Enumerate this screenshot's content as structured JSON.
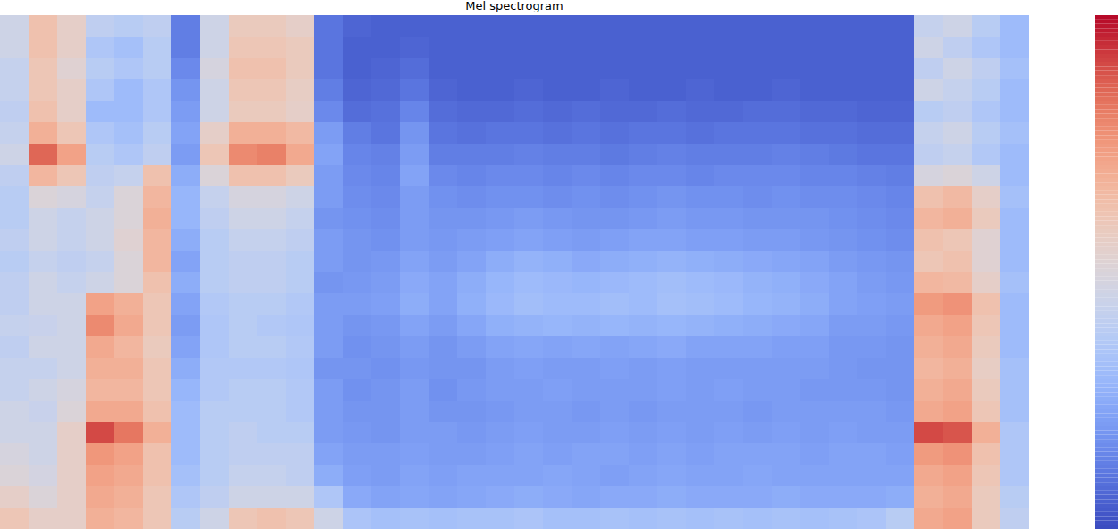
{
  "chart_data": {
    "type": "heatmap",
    "title": "Mel spectrogram",
    "color": "coolwarm",
    "tick_labels": false,
    "color_range": [
      0,
      1
    ],
    "cells": [
      [
        0.45,
        0.45,
        0.42,
        0.42,
        0.4,
        0.42,
        0.45,
        0.4,
        0.38,
        0.38,
        0.4,
        0.38,
        0.4,
        0.4,
        0.42,
        0.4,
        0.42,
        0.42,
        0.45,
        0.45,
        0.48,
        0.5,
        0.55,
        0.6
      ],
      [
        0.62,
        0.62,
        0.6,
        0.6,
        0.62,
        0.68,
        0.85,
        0.66,
        0.5,
        0.45,
        0.45,
        0.42,
        0.45,
        0.45,
        0.43,
        0.45,
        0.42,
        0.45,
        0.43,
        0.45,
        0.45,
        0.47,
        0.5,
        0.55
      ],
      [
        0.55,
        0.55,
        0.52,
        0.55,
        0.55,
        0.6,
        0.72,
        0.6,
        0.48,
        0.42,
        0.42,
        0.4,
        0.42,
        0.45,
        0.45,
        0.45,
        0.45,
        0.48,
        0.5,
        0.55,
        0.55,
        0.55,
        0.55,
        0.55
      ],
      [
        0.4,
        0.35,
        0.38,
        0.35,
        0.3,
        0.35,
        0.38,
        0.4,
        0.42,
        0.45,
        0.45,
        0.42,
        0.45,
        0.72,
        0.78,
        0.7,
        0.68,
        0.66,
        0.7,
        0.9,
        0.75,
        0.72,
        0.7,
        0.68
      ],
      [
        0.38,
        0.32,
        0.35,
        0.3,
        0.3,
        0.32,
        0.35,
        0.42,
        0.5,
        0.5,
        0.52,
        0.5,
        0.5,
        0.68,
        0.7,
        0.66,
        0.68,
        0.66,
        0.7,
        0.82,
        0.72,
        0.7,
        0.68,
        0.66
      ],
      [
        0.4,
        0.38,
        0.38,
        0.35,
        0.35,
        0.38,
        0.4,
        0.62,
        0.66,
        0.68,
        0.66,
        0.66,
        0.62,
        0.6,
        0.6,
        0.58,
        0.6,
        0.6,
        0.62,
        0.68,
        0.62,
        0.62,
        0.6,
        0.6
      ],
      [
        0.12,
        0.12,
        0.15,
        0.18,
        0.2,
        0.22,
        0.2,
        0.25,
        0.28,
        0.28,
        0.25,
        0.22,
        0.25,
        0.22,
        0.2,
        0.22,
        0.25,
        0.28,
        0.3,
        0.3,
        0.3,
        0.32,
        0.35,
        0.38
      ],
      [
        0.45,
        0.45,
        0.48,
        0.45,
        0.45,
        0.55,
        0.6,
        0.5,
        0.42,
        0.4,
        0.38,
        0.38,
        0.38,
        0.36,
        0.35,
        0.35,
        0.36,
        0.36,
        0.38,
        0.38,
        0.38,
        0.38,
        0.4,
        0.45
      ],
      [
        0.58,
        0.6,
        0.62,
        0.6,
        0.58,
        0.68,
        0.78,
        0.62,
        0.48,
        0.45,
        0.42,
        0.4,
        0.4,
        0.38,
        0.38,
        0.38,
        0.36,
        0.38,
        0.38,
        0.4,
        0.4,
        0.42,
        0.45,
        0.6
      ],
      [
        0.58,
        0.6,
        0.62,
        0.6,
        0.58,
        0.68,
        0.8,
        0.62,
        0.48,
        0.45,
        0.42,
        0.4,
        0.4,
        0.38,
        0.36,
        0.38,
        0.36,
        0.38,
        0.38,
        0.38,
        0.4,
        0.42,
        0.45,
        0.62
      ],
      [
        0.55,
        0.58,
        0.58,
        0.56,
        0.55,
        0.65,
        0.7,
        0.58,
        0.45,
        0.42,
        0.4,
        0.38,
        0.38,
        0.36,
        0.35,
        0.36,
        0.35,
        0.36,
        0.36,
        0.38,
        0.4,
        0.4,
        0.45,
        0.6
      ],
      [
        0.1,
        0.1,
        0.1,
        0.12,
        0.15,
        0.2,
        0.22,
        0.2,
        0.2,
        0.18,
        0.2,
        0.2,
        0.18,
        0.2,
        0.2,
        0.2,
        0.18,
        0.2,
        0.2,
        0.2,
        0.22,
        0.25,
        0.35,
        0.45
      ],
      [
        0.06,
        0.05,
        0.05,
        0.06,
        0.08,
        0.12,
        0.14,
        0.15,
        0.16,
        0.17,
        0.18,
        0.18,
        0.19,
        0.2,
        0.18,
        0.17,
        0.18,
        0.17,
        0.18,
        0.19,
        0.2,
        0.21,
        0.24,
        0.34
      ],
      [
        0.05,
        0.05,
        0.06,
        0.07,
        0.09,
        0.1,
        0.13,
        0.14,
        0.15,
        0.16,
        0.17,
        0.19,
        0.2,
        0.21,
        0.19,
        0.18,
        0.17,
        0.18,
        0.18,
        0.18,
        0.2,
        0.2,
        0.22,
        0.32
      ],
      [
        0.05,
        0.06,
        0.08,
        0.1,
        0.14,
        0.18,
        0.2,
        0.22,
        0.2,
        0.2,
        0.2,
        0.22,
        0.24,
        0.25,
        0.22,
        0.2,
        0.19,
        0.2,
        0.2,
        0.2,
        0.21,
        0.22,
        0.23,
        0.33
      ],
      [
        0.05,
        0.05,
        0.05,
        0.06,
        0.08,
        0.1,
        0.12,
        0.15,
        0.17,
        0.18,
        0.19,
        0.2,
        0.22,
        0.22,
        0.2,
        0.18,
        0.18,
        0.17,
        0.18,
        0.2,
        0.2,
        0.21,
        0.22,
        0.32
      ],
      [
        0.05,
        0.05,
        0.05,
        0.05,
        0.07,
        0.09,
        0.12,
        0.14,
        0.16,
        0.18,
        0.2,
        0.22,
        0.25,
        0.26,
        0.23,
        0.2,
        0.18,
        0.19,
        0.18,
        0.19,
        0.2,
        0.22,
        0.23,
        0.33
      ],
      [
        0.05,
        0.05,
        0.05,
        0.05,
        0.07,
        0.1,
        0.12,
        0.15,
        0.17,
        0.19,
        0.21,
        0.25,
        0.28,
        0.29,
        0.26,
        0.22,
        0.2,
        0.2,
        0.19,
        0.2,
        0.21,
        0.22,
        0.24,
        0.33
      ],
      [
        0.05,
        0.05,
        0.05,
        0.06,
        0.08,
        0.1,
        0.13,
        0.15,
        0.17,
        0.2,
        0.22,
        0.27,
        0.3,
        0.31,
        0.27,
        0.23,
        0.21,
        0.2,
        0.2,
        0.21,
        0.22,
        0.22,
        0.25,
        0.34
      ],
      [
        0.05,
        0.05,
        0.05,
        0.05,
        0.07,
        0.09,
        0.12,
        0.14,
        0.16,
        0.19,
        0.21,
        0.26,
        0.29,
        0.3,
        0.28,
        0.22,
        0.2,
        0.21,
        0.2,
        0.2,
        0.21,
        0.23,
        0.24,
        0.32
      ],
      [
        0.05,
        0.05,
        0.05,
        0.05,
        0.08,
        0.1,
        0.12,
        0.15,
        0.17,
        0.18,
        0.2,
        0.24,
        0.28,
        0.3,
        0.27,
        0.23,
        0.2,
        0.2,
        0.19,
        0.2,
        0.22,
        0.22,
        0.23,
        0.32
      ],
      [
        0.05,
        0.05,
        0.05,
        0.06,
        0.07,
        0.09,
        0.11,
        0.14,
        0.16,
        0.18,
        0.21,
        0.25,
        0.29,
        0.31,
        0.28,
        0.22,
        0.21,
        0.2,
        0.2,
        0.21,
        0.22,
        0.21,
        0.24,
        0.33
      ],
      [
        0.05,
        0.05,
        0.05,
        0.05,
        0.07,
        0.1,
        0.12,
        0.15,
        0.17,
        0.19,
        0.22,
        0.26,
        0.3,
        0.3,
        0.27,
        0.23,
        0.2,
        0.2,
        0.19,
        0.2,
        0.21,
        0.22,
        0.24,
        0.32
      ],
      [
        0.05,
        0.05,
        0.05,
        0.05,
        0.08,
        0.1,
        0.13,
        0.15,
        0.18,
        0.2,
        0.22,
        0.27,
        0.31,
        0.32,
        0.28,
        0.24,
        0.21,
        0.21,
        0.2,
        0.21,
        0.22,
        0.23,
        0.25,
        0.33
      ],
      [
        0.05,
        0.05,
        0.05,
        0.06,
        0.07,
        0.09,
        0.12,
        0.14,
        0.17,
        0.19,
        0.21,
        0.26,
        0.3,
        0.31,
        0.27,
        0.22,
        0.2,
        0.2,
        0.2,
        0.2,
        0.21,
        0.22,
        0.24,
        0.32
      ],
      [
        0.05,
        0.05,
        0.05,
        0.05,
        0.07,
        0.1,
        0.12,
        0.15,
        0.17,
        0.19,
        0.21,
        0.25,
        0.29,
        0.3,
        0.26,
        0.22,
        0.2,
        0.21,
        0.2,
        0.21,
        0.22,
        0.22,
        0.24,
        0.33
      ],
      [
        0.05,
        0.05,
        0.05,
        0.05,
        0.08,
        0.1,
        0.12,
        0.15,
        0.16,
        0.18,
        0.2,
        0.24,
        0.27,
        0.28,
        0.25,
        0.22,
        0.2,
        0.2,
        0.19,
        0.2,
        0.22,
        0.23,
        0.24,
        0.32
      ],
      [
        0.05,
        0.05,
        0.05,
        0.06,
        0.08,
        0.1,
        0.13,
        0.15,
        0.17,
        0.18,
        0.2,
        0.23,
        0.26,
        0.27,
        0.24,
        0.21,
        0.2,
        0.2,
        0.2,
        0.21,
        0.22,
        0.22,
        0.25,
        0.33
      ],
      [
        0.05,
        0.05,
        0.05,
        0.05,
        0.07,
        0.09,
        0.12,
        0.14,
        0.16,
        0.18,
        0.19,
        0.22,
        0.24,
        0.25,
        0.23,
        0.21,
        0.2,
        0.19,
        0.2,
        0.2,
        0.21,
        0.22,
        0.24,
        0.32
      ],
      [
        0.05,
        0.05,
        0.05,
        0.05,
        0.07,
        0.09,
        0.11,
        0.14,
        0.16,
        0.17,
        0.18,
        0.2,
        0.22,
        0.22,
        0.2,
        0.19,
        0.19,
        0.19,
        0.2,
        0.21,
        0.22,
        0.22,
        0.24,
        0.33
      ],
      [
        0.05,
        0.05,
        0.05,
        0.05,
        0.06,
        0.08,
        0.1,
        0.13,
        0.15,
        0.16,
        0.17,
        0.19,
        0.2,
        0.21,
        0.2,
        0.19,
        0.18,
        0.19,
        0.2,
        0.2,
        0.22,
        0.22,
        0.24,
        0.34
      ],
      [
        0.05,
        0.05,
        0.05,
        0.05,
        0.06,
        0.08,
        0.1,
        0.12,
        0.14,
        0.15,
        0.16,
        0.18,
        0.19,
        0.2,
        0.19,
        0.18,
        0.18,
        0.18,
        0.19,
        0.2,
        0.21,
        0.22,
        0.25,
        0.38
      ],
      [
        0.42,
        0.45,
        0.4,
        0.45,
        0.38,
        0.42,
        0.4,
        0.48,
        0.62,
        0.66,
        0.62,
        0.6,
        0.66,
        0.74,
        0.7,
        0.68,
        0.66,
        0.68,
        0.7,
        0.9,
        0.74,
        0.7,
        0.68,
        0.7
      ],
      [
        0.45,
        0.4,
        0.45,
        0.42,
        0.4,
        0.45,
        0.42,
        0.5,
        0.65,
        0.68,
        0.6,
        0.62,
        0.65,
        0.76,
        0.72,
        0.7,
        0.68,
        0.7,
        0.72,
        0.88,
        0.76,
        0.72,
        0.7,
        0.72
      ],
      [
        0.38,
        0.35,
        0.4,
        0.38,
        0.35,
        0.38,
        0.36,
        0.45,
        0.55,
        0.58,
        0.52,
        0.52,
        0.55,
        0.62,
        0.6,
        0.58,
        0.56,
        0.58,
        0.6,
        0.68,
        0.62,
        0.6,
        0.58,
        0.58
      ],
      [
        0.3,
        0.3,
        0.32,
        0.3,
        0.3,
        0.32,
        0.3,
        0.3,
        0.32,
        0.3,
        0.3,
        0.3,
        0.32,
        0.3,
        0.3,
        0.3,
        0.32,
        0.32,
        0.32,
        0.35,
        0.35,
        0.35,
        0.38,
        0.4
      ]
    ]
  }
}
